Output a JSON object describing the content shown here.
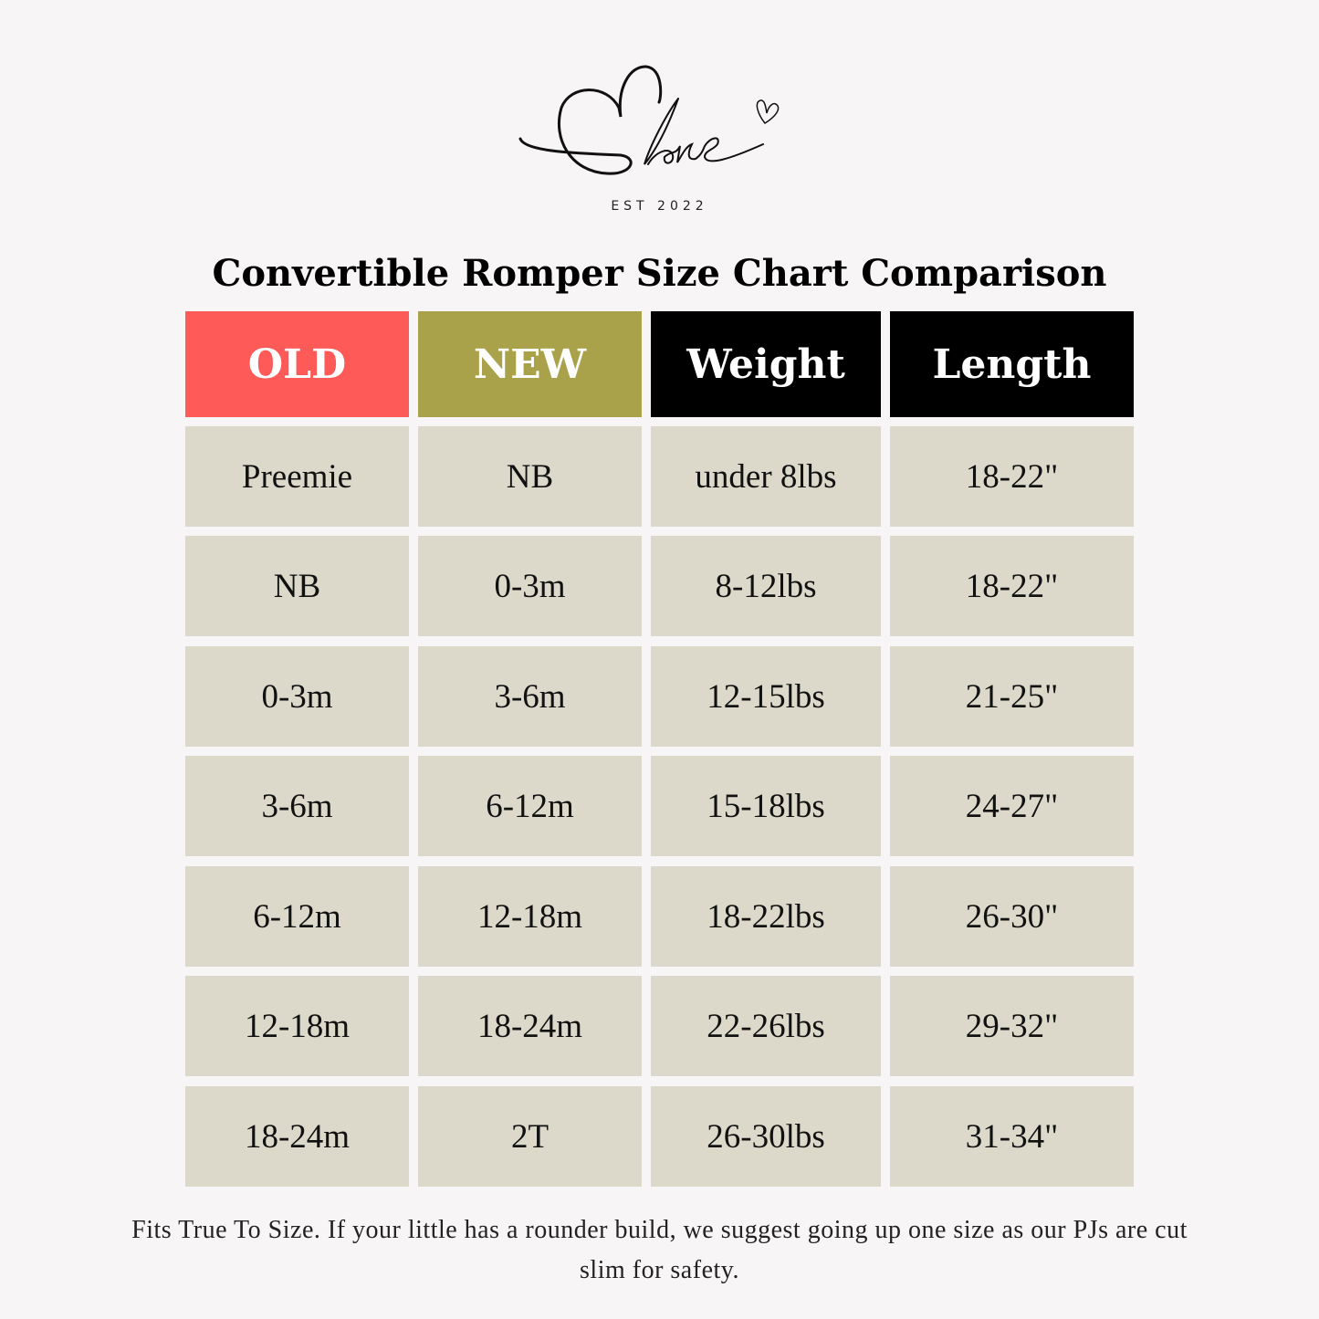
{
  "brand": {
    "logo_text": "Eloise",
    "established": "EST 2022"
  },
  "title": "Convertible Romper Size Chart Comparison",
  "colors": {
    "old_header": "#fe5a58",
    "new_header": "#aaa24a",
    "dark_header": "#000000",
    "cell": "#dcd9cb",
    "background": "#f7f5f6"
  },
  "table": {
    "headers": [
      "OLD",
      "NEW",
      "Weight",
      "Length"
    ],
    "rows": [
      [
        "Preemie",
        "NB",
        "under 8lbs",
        "18-22\""
      ],
      [
        "NB",
        "0-3m",
        "8-12lbs",
        "18-22\""
      ],
      [
        "0-3m",
        "3-6m",
        "12-15lbs",
        "21-25\""
      ],
      [
        "3-6m",
        "6-12m",
        "15-18lbs",
        "24-27\""
      ],
      [
        "6-12m",
        "12-18m",
        "18-22lbs",
        "26-30\""
      ],
      [
        "12-18m",
        "18-24m",
        "22-26lbs",
        "29-32\""
      ],
      [
        "18-24m",
        "2T",
        "26-30lbs",
        "31-34\""
      ]
    ]
  },
  "footnote": "Fits True To Size. If your little has a rounder build, we suggest going up one size as our PJs are cut slim for safety."
}
